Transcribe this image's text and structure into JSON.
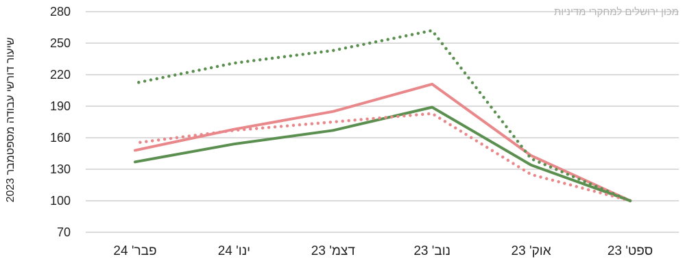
{
  "chart_data": {
    "type": "line",
    "watermark": "מכון ירושלים למחקרי מדיניות",
    "ylabel": "שיעור דורשי עבודה מספטמבר 2023",
    "xlabel": "",
    "categories": [
      "ספט' 23",
      "אוק' 23",
      "נוב' 23",
      "דצמ' 23",
      "ינו' 24",
      "פבר' 24"
    ],
    "ylim": [
      70,
      280
    ],
    "yticks": [
      70,
      100,
      130,
      160,
      190,
      220,
      250,
      280
    ],
    "grid": true,
    "x_direction": "right-to-left",
    "series": [
      {
        "color": "#e8888a",
        "style": "solid",
        "values": [
          100,
          143,
          211,
          185,
          168,
          148
        ]
      },
      {
        "color": "#5a8f4f",
        "style": "solid",
        "values": [
          100,
          134,
          189,
          167,
          154,
          137
        ]
      },
      {
        "color": "#e8888a",
        "style": "dotted",
        "values": [
          100,
          125,
          183,
          175,
          167,
          155
        ]
      },
      {
        "color": "#5a8f4f",
        "style": "dotted",
        "values": [
          100,
          140,
          262,
          243,
          231,
          212
        ]
      }
    ]
  }
}
